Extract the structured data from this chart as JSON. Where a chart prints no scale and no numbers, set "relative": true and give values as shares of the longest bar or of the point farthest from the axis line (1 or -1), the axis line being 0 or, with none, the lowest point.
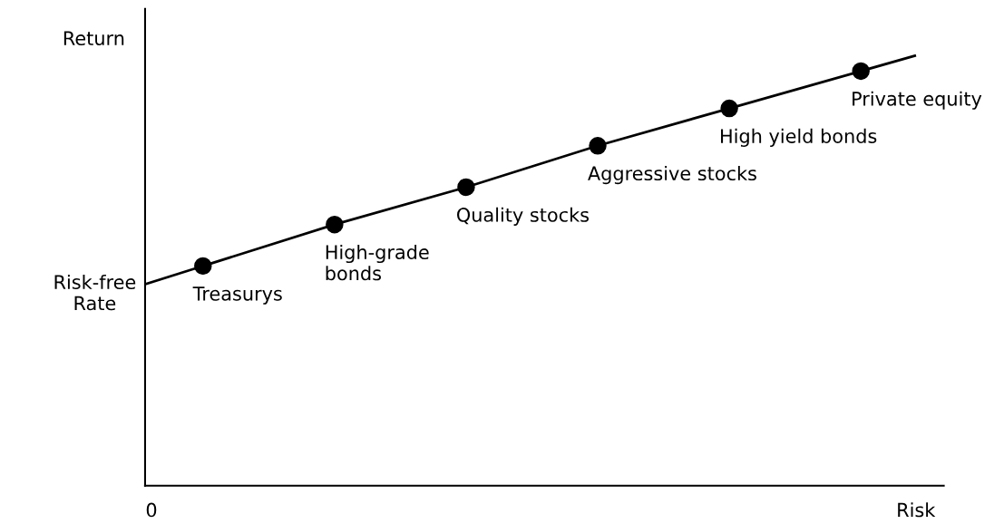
{
  "chart_data": {
    "type": "line",
    "relative": true,
    "marker": "circle",
    "xlabel": "Risk",
    "ylabel": "Return",
    "categories": [
      null,
      null,
      null,
      null,
      null,
      null
    ],
    "series": [
      {
        "color": "#000000",
        "values": [
          0.53,
          0.63,
          0.72,
          0.82,
          0.91,
          1.0
        ]
      }
    ],
    "annotations": [
      "Treasurys",
      "High-grade\nbonds",
      "Quality stocks",
      "Aggressive stocks",
      "High yield bonds",
      "Private equity",
      "Risk-free\nRate",
      "0"
    ]
  }
}
